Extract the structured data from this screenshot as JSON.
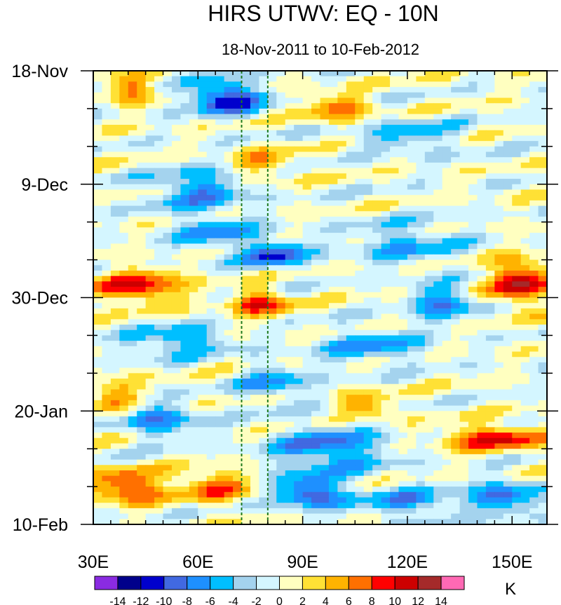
{
  "chart_data": {
    "type": "heatmap",
    "title": "HIRS UTWV: EQ - 10N",
    "subtitle": "18-Nov-2011 to 10-Feb-2012",
    "xlabel": "",
    "ylabel": "",
    "xlim": [
      30,
      160
    ],
    "x_ticks": [
      {
        "value": 30,
        "label": "30E"
      },
      {
        "value": 60,
        "label": "60E"
      },
      {
        "value": 90,
        "label": "90E"
      },
      {
        "value": 120,
        "label": "120E"
      },
      {
        "value": 150,
        "label": "150E"
      }
    ],
    "y_ticks": [
      {
        "day": 0,
        "label": "18-Nov"
      },
      {
        "day": 21,
        "label": "9-Dec"
      },
      {
        "day": 42,
        "label": "30-Dec"
      },
      {
        "day": 63,
        "label": "20-Jan"
      },
      {
        "day": 84,
        "label": "10-Feb"
      }
    ],
    "y_days_total": 84,
    "reference_lines_lon": [
      72.5,
      80
    ],
    "colorbar": {
      "unit": "K",
      "levels": [
        -14,
        -12,
        -10,
        -8,
        -6,
        -4,
        -2,
        0,
        2,
        4,
        6,
        8,
        10,
        12,
        14
      ],
      "level_labels": [
        "-14",
        "-12",
        "-10",
        "-8",
        "-6",
        "-4",
        "-2",
        "0",
        "2",
        "4",
        "6",
        "8",
        "10",
        "12",
        "14"
      ],
      "colors": [
        "#8a2be2",
        "#00008b",
        "#0000cd",
        "#4169e1",
        "#1e90ff",
        "#00bfff",
        "#a4d3ee",
        "#d4f6ff",
        "#ffffc0",
        "#ffe135",
        "#ffb300",
        "#ff7000",
        "#ff0000",
        "#cd0000",
        "#a52a2a",
        "#ff69b4"
      ]
    },
    "anomaly_features": [
      {
        "lon": 68,
        "day": 5,
        "amplitude": -12,
        "lon_width": 10,
        "day_width": 3,
        "note": "dark blue core top"
      },
      {
        "lon": 40,
        "day": 3,
        "amplitude": 7,
        "lon_width": 6,
        "day_width": 3
      },
      {
        "lon": 100,
        "day": 7,
        "amplitude": 7,
        "lon_width": 9,
        "day_width": 2.5
      },
      {
        "lon": 78,
        "day": 17,
        "amplitude": 5,
        "lon_width": 9,
        "day_width": 2.5
      },
      {
        "lon": 120,
        "day": 12,
        "amplitude": -5,
        "lon_width": 14,
        "day_width": 3
      },
      {
        "lon": 60,
        "day": 22,
        "amplitude": -7,
        "lon_width": 13,
        "day_width": 4
      },
      {
        "lon": 82,
        "day": 34,
        "amplitude": -10,
        "lon_width": 9,
        "day_width": 2.5
      },
      {
        "lon": 65,
        "day": 30,
        "amplitude": -6,
        "lon_width": 12,
        "day_width": 3
      },
      {
        "lon": 120,
        "day": 32,
        "amplitude": -5,
        "lon_width": 16,
        "day_width": 4
      },
      {
        "lon": 43,
        "day": 40,
        "amplitude": 10,
        "lon_width": 12,
        "day_width": 3
      },
      {
        "lon": 78,
        "day": 43,
        "amplitude": 9,
        "lon_width": 8,
        "day_width": 2.5
      },
      {
        "lon": 152,
        "day": 39,
        "amplitude": 12,
        "lon_width": 8,
        "day_width": 4
      },
      {
        "lon": 130,
        "day": 43,
        "amplitude": -8,
        "lon_width": 9,
        "day_width": 3
      },
      {
        "lon": 55,
        "day": 50,
        "amplitude": -7,
        "lon_width": 14,
        "day_width": 2.5
      },
      {
        "lon": 110,
        "day": 51,
        "amplitude": -6,
        "lon_width": 15,
        "day_width": 3
      },
      {
        "lon": 36,
        "day": 60,
        "amplitude": 6,
        "lon_width": 7,
        "day_width": 3
      },
      {
        "lon": 82,
        "day": 58,
        "amplitude": -6,
        "lon_width": 10,
        "day_width": 3
      },
      {
        "lon": 108,
        "day": 62,
        "amplitude": 6,
        "lon_width": 8,
        "day_width": 2.5
      },
      {
        "lon": 145,
        "day": 68,
        "amplitude": 10,
        "lon_width": 14,
        "day_width": 2.2
      },
      {
        "lon": 50,
        "day": 65,
        "amplitude": -7,
        "lon_width": 10,
        "day_width": 3
      },
      {
        "lon": 98,
        "day": 70,
        "amplitude": -8,
        "lon_width": 16,
        "day_width": 4
      },
      {
        "lon": 40,
        "day": 77,
        "amplitude": 10,
        "lon_width": 10,
        "day_width": 3
      },
      {
        "lon": 65,
        "day": 77,
        "amplitude": 7,
        "lon_width": 10,
        "day_width": 3
      },
      {
        "lon": 92,
        "day": 78,
        "amplitude": -10,
        "lon_width": 10,
        "day_width": 3
      },
      {
        "lon": 148,
        "day": 79,
        "amplitude": -8,
        "lon_width": 10,
        "day_width": 3
      },
      {
        "lon": 120,
        "day": 80,
        "amplitude": -6,
        "lon_width": 14,
        "day_width": 3
      }
    ]
  }
}
